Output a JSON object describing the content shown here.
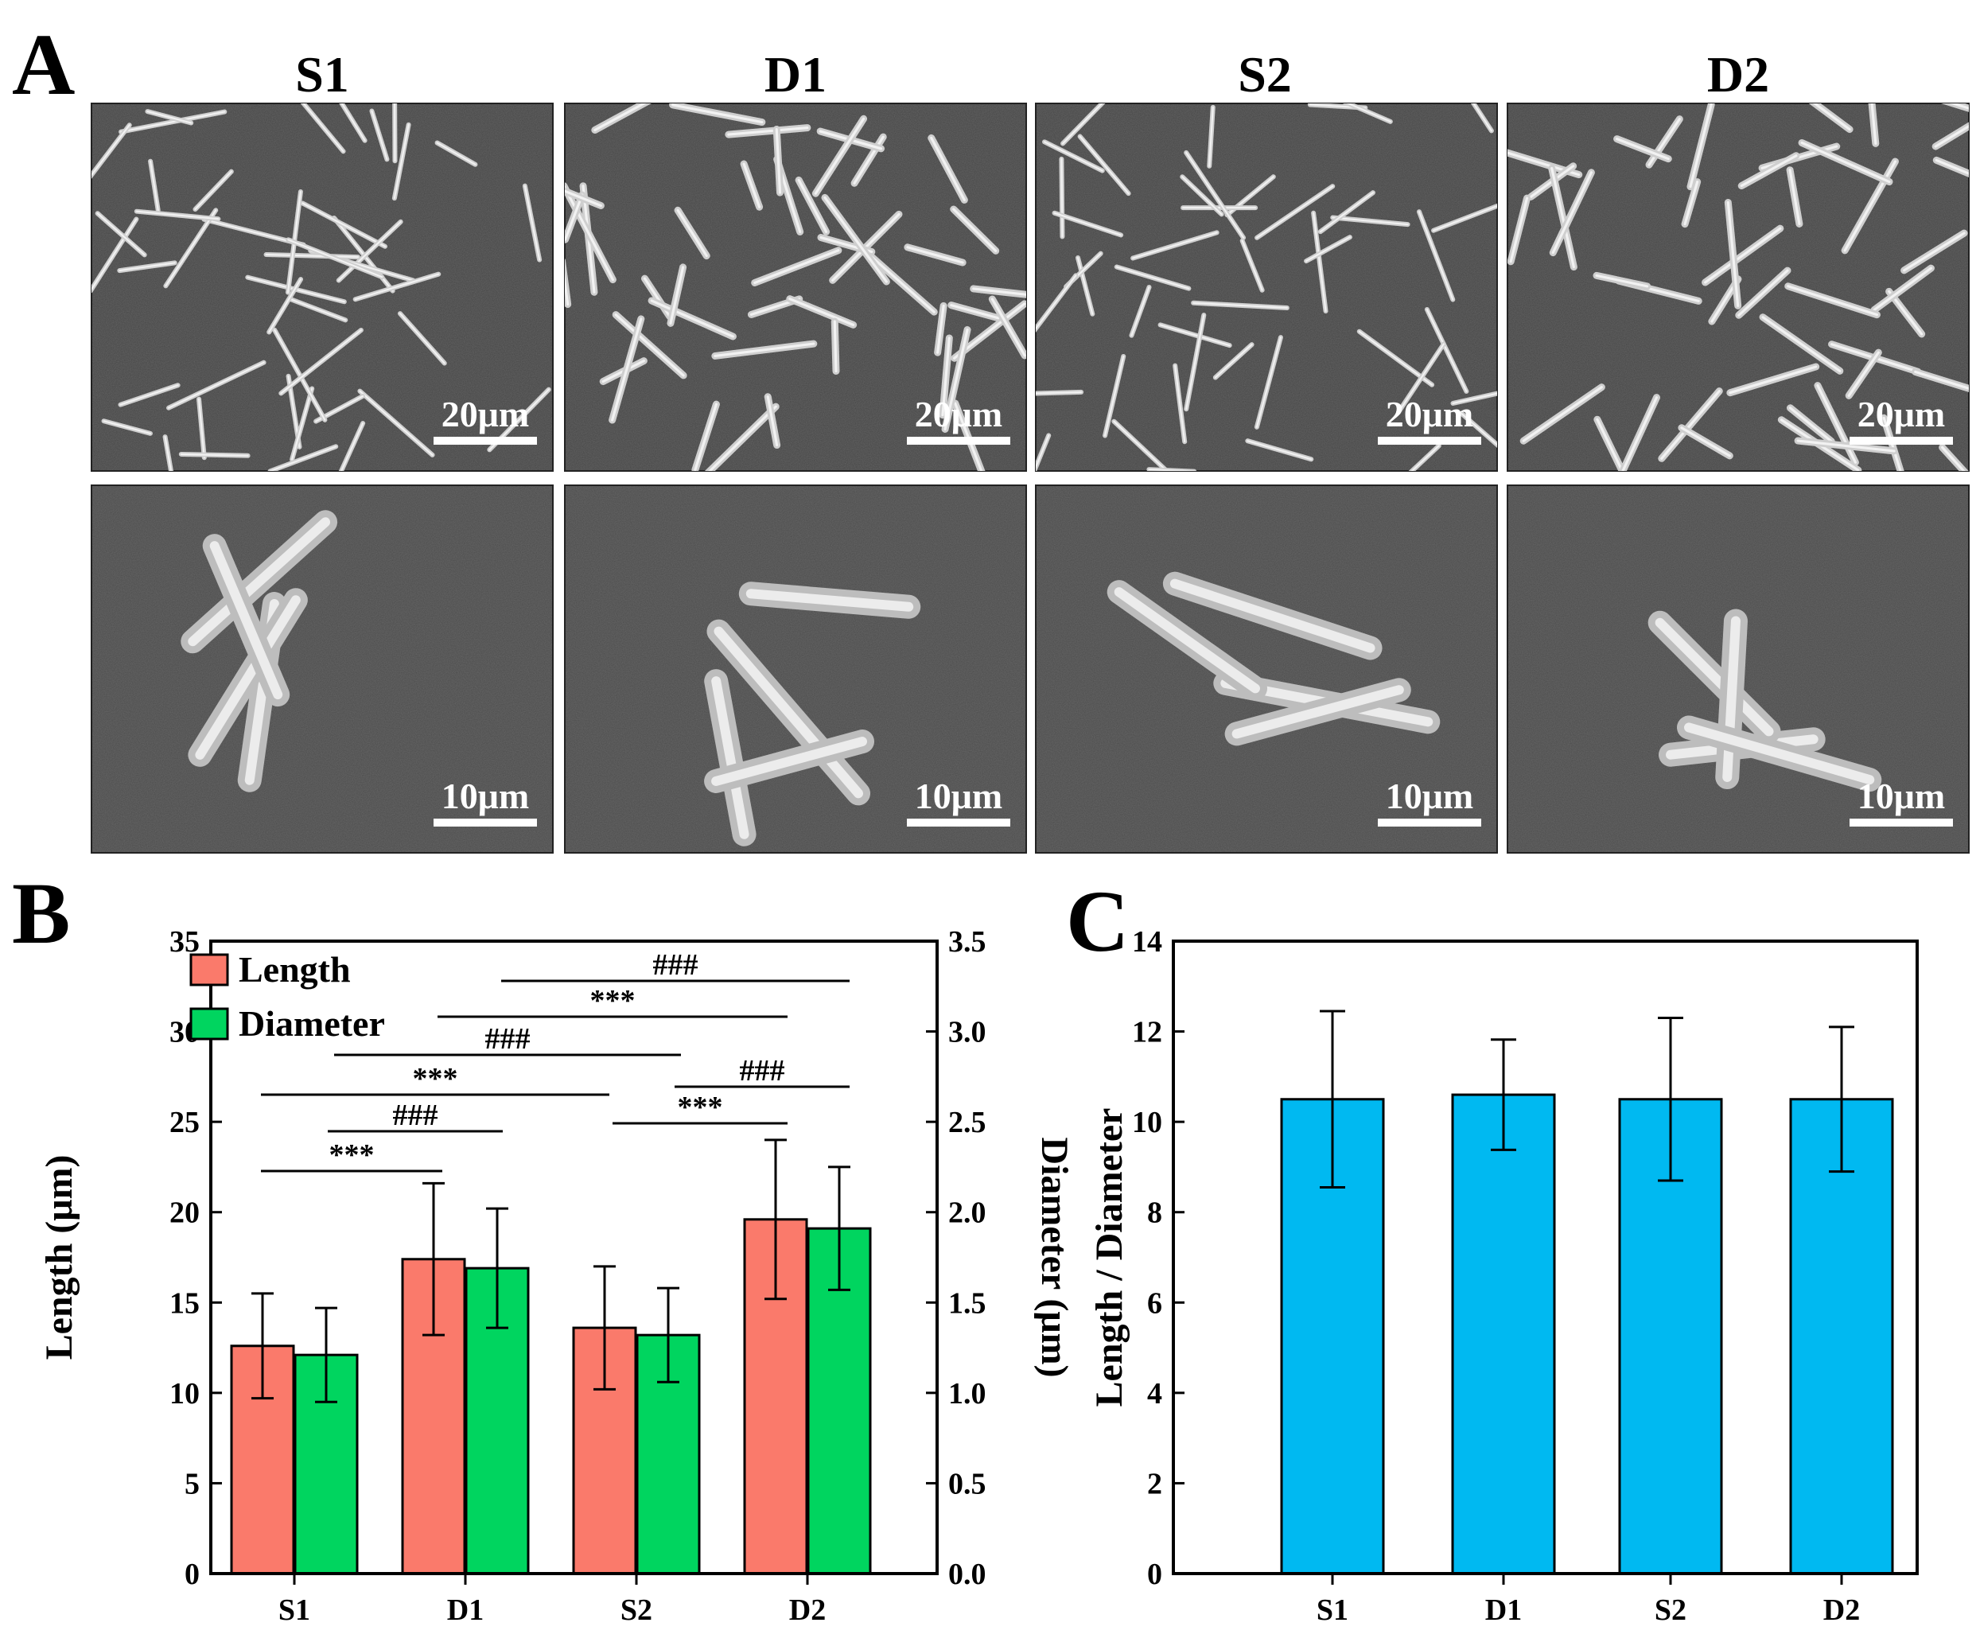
{
  "panels": {
    "a": "A",
    "b": "B",
    "c": "C"
  },
  "sem": {
    "columns": [
      "S1",
      "D1",
      "S2",
      "D2"
    ],
    "top_scale": "20μm",
    "bottom_scale": "10μm"
  },
  "chart_data": [
    {
      "type": "bar",
      "panel": "B",
      "categories": [
        "S1",
        "D1",
        "S2",
        "D2"
      ],
      "series": [
        {
          "name": "Length",
          "axis": "left",
          "color": "#fa7a6b",
          "values": [
            12.6,
            17.4,
            13.6,
            19.6
          ],
          "errors": [
            2.9,
            4.2,
            3.4,
            4.4
          ]
        },
        {
          "name": "Diameter",
          "axis": "right",
          "color": "#00d55f",
          "values": [
            1.21,
            1.69,
            1.32,
            1.91
          ],
          "errors": [
            0.26,
            0.33,
            0.26,
            0.34
          ]
        }
      ],
      "xlabel": "",
      "ylabel": "Length (μm)",
      "ylabel_right": "Diameter (μm)",
      "ylim": [
        0,
        35
      ],
      "ylim_right": [
        0,
        3.5
      ],
      "yticks": [
        "0",
        "5",
        "10",
        "15",
        "20",
        "25",
        "30",
        "35"
      ],
      "yticks_right": [
        "0.0",
        "0.5",
        "1.0",
        "1.5",
        "2.0",
        "2.5",
        "3.0",
        "3.5"
      ],
      "legend_position": "top-left",
      "significance": [
        {
          "label": "***",
          "from": "S1",
          "to": "D1",
          "series": "Length"
        },
        {
          "label": "###",
          "from": "S1",
          "to": "D1",
          "series": "Diameter"
        },
        {
          "label": "***",
          "from": "S1",
          "to": "S2",
          "series": "Length"
        },
        {
          "label": "###",
          "from": "S1",
          "to": "S2",
          "series": "Diameter"
        },
        {
          "label": "***",
          "from": "D1",
          "to": "D2",
          "series": "Length"
        },
        {
          "label": "###",
          "from": "D1",
          "to": "D2",
          "series": "Diameter"
        },
        {
          "label": "***",
          "from": "S2",
          "to": "D2",
          "series": "Length"
        },
        {
          "label": "###",
          "from": "S2",
          "to": "D2",
          "series": "Diameter"
        }
      ]
    },
    {
      "type": "bar",
      "panel": "C",
      "categories": [
        "S1",
        "D1",
        "S2",
        "D2"
      ],
      "values": [
        10.5,
        10.6,
        10.5,
        10.5
      ],
      "errors": [
        1.95,
        1.22,
        1.8,
        1.6
      ],
      "color": "#00b9f1",
      "xlabel": "",
      "ylabel": "Length / Diameter",
      "ylim": [
        0,
        14
      ],
      "yticks": [
        "0",
        "2",
        "4",
        "6",
        "8",
        "10",
        "12",
        "14"
      ]
    }
  ]
}
